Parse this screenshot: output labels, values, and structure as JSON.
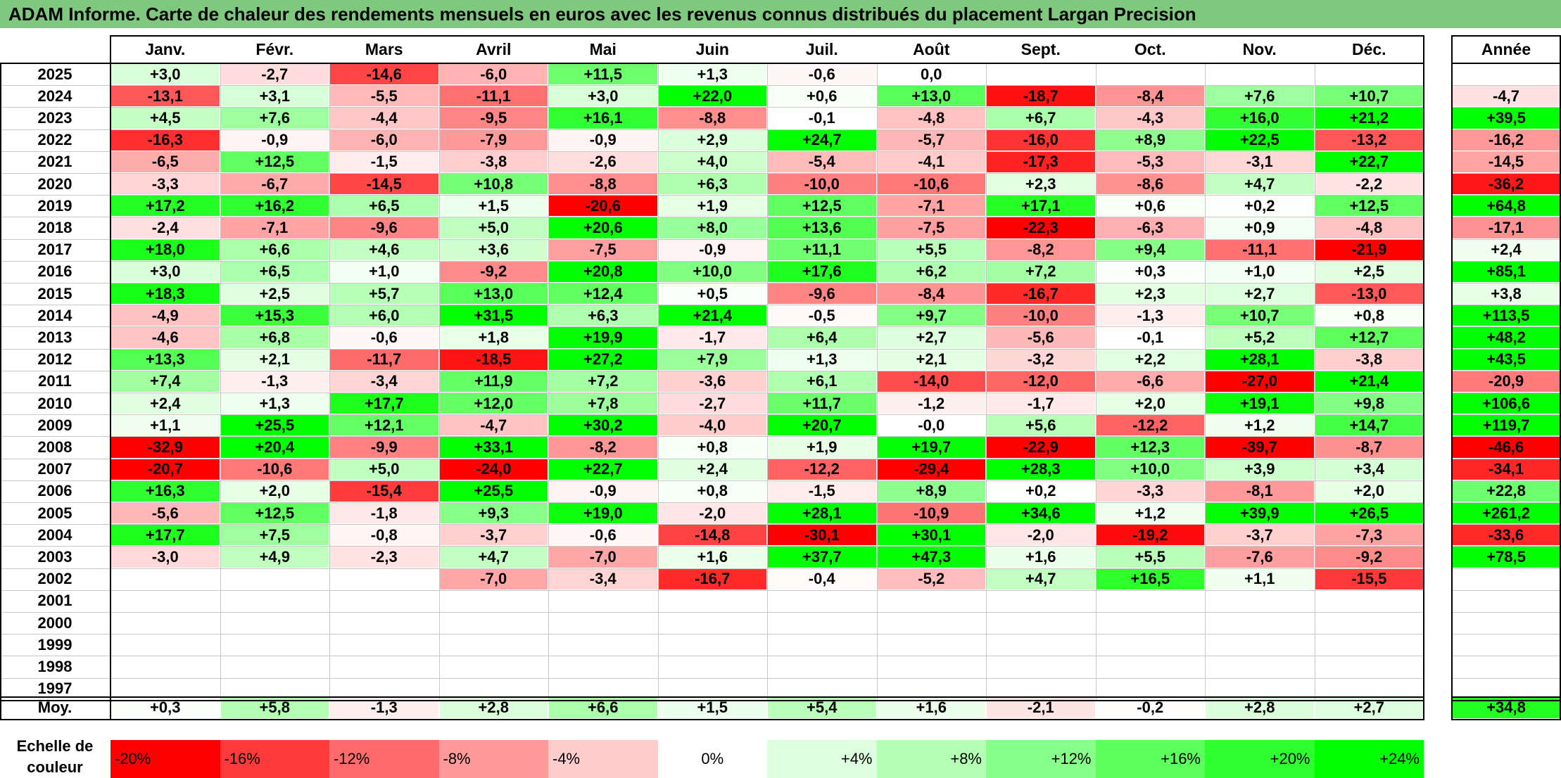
{
  "title": "ADAM Informe. Carte de chaleur des rendements mensuels en euros avec les revenus connus distribués du placement Largan Precision",
  "chart_data": {
    "type": "heatmap",
    "title": "ADAM Informe. Carte de chaleur des rendements mensuels en euros avec les revenus connus distribués du placement Largan Precision",
    "columns": [
      "Janv.",
      "Févr.",
      "Mars",
      "Avril",
      "Mai",
      "Juin",
      "Juil.",
      "Août",
      "Sept.",
      "Oct.",
      "Nov.",
      "Déc."
    ],
    "year_header": "Année",
    "rows": [
      {
        "year": "2025",
        "months": [
          "+3,0",
          "-2,7",
          "-14,6",
          "-6,0",
          "+11,5",
          "+1,3",
          "-0,6",
          "0,0",
          "",
          "",
          "",
          ""
        ],
        "annual": ""
      },
      {
        "year": "2024",
        "months": [
          "-13,1",
          "+3,1",
          "-5,5",
          "-11,1",
          "+3,0",
          "+22,0",
          "+0,6",
          "+13,0",
          "-18,7",
          "-8,4",
          "+7,6",
          "+10,7"
        ],
        "annual": "-4,7"
      },
      {
        "year": "2023",
        "months": [
          "+4,5",
          "+7,6",
          "-4,4",
          "-9,5",
          "+16,1",
          "-8,8",
          "-0,1",
          "-4,8",
          "+6,7",
          "-4,3",
          "+16,0",
          "+21,2"
        ],
        "annual": "+39,5"
      },
      {
        "year": "2022",
        "months": [
          "-16,3",
          "-0,9",
          "-6,0",
          "-7,9",
          "-0,9",
          "+2,9",
          "+24,7",
          "-5,7",
          "-16,0",
          "+8,9",
          "+22,5",
          "-13,2"
        ],
        "annual": "-16,2"
      },
      {
        "year": "2021",
        "months": [
          "-6,5",
          "+12,5",
          "-1,5",
          "-3,8",
          "-2,6",
          "+4,0",
          "-5,4",
          "-4,1",
          "-17,3",
          "-5,3",
          "-3,1",
          "+22,7"
        ],
        "annual": "-14,5"
      },
      {
        "year": "2020",
        "months": [
          "-3,3",
          "-6,7",
          "-14,5",
          "+10,8",
          "-8,8",
          "+6,3",
          "-10,0",
          "-10,6",
          "+2,3",
          "-8,6",
          "+4,7",
          "-2,2"
        ],
        "annual": "-36,2"
      },
      {
        "year": "2019",
        "months": [
          "+17,2",
          "+16,2",
          "+6,5",
          "+1,5",
          "-20,6",
          "+1,9",
          "+12,5",
          "-7,1",
          "+17,1",
          "+0,6",
          "+0,2",
          "+12,5"
        ],
        "annual": "+64,8"
      },
      {
        "year": "2018",
        "months": [
          "-2,4",
          "-7,1",
          "-9,6",
          "+5,0",
          "+20,6",
          "+8,0",
          "+13,6",
          "-7,5",
          "-22,3",
          "-6,3",
          "+0,9",
          "-4,8"
        ],
        "annual": "-17,1"
      },
      {
        "year": "2017",
        "months": [
          "+18,0",
          "+6,6",
          "+4,6",
          "+3,6",
          "-7,5",
          "-0,9",
          "+11,1",
          "+5,5",
          "-8,2",
          "+9,4",
          "-11,1",
          "-21,9"
        ],
        "annual": "+2,4"
      },
      {
        "year": "2016",
        "months": [
          "+3,0",
          "+6,5",
          "+1,0",
          "-9,2",
          "+20,8",
          "+10,0",
          "+17,6",
          "+6,2",
          "+7,2",
          "+0,3",
          "+1,0",
          "+2,5"
        ],
        "annual": "+85,1"
      },
      {
        "year": "2015",
        "months": [
          "+18,3",
          "+2,5",
          "+5,7",
          "+13,0",
          "+12,4",
          "+0,5",
          "-9,6",
          "-8,4",
          "-16,7",
          "+2,3",
          "+2,7",
          "-13,0"
        ],
        "annual": "+3,8"
      },
      {
        "year": "2014",
        "months": [
          "-4,9",
          "+15,3",
          "+6,0",
          "+31,5",
          "+6,3",
          "+21,4",
          "-0,5",
          "+9,7",
          "-10,0",
          "-1,3",
          "+10,7",
          "+0,8"
        ],
        "annual": "+113,5"
      },
      {
        "year": "2013",
        "months": [
          "-4,6",
          "+6,8",
          "-0,6",
          "+1,8",
          "+19,9",
          "-1,7",
          "+6,4",
          "+2,7",
          "-5,6",
          "-0,1",
          "+5,2",
          "+12,7"
        ],
        "annual": "+48,2"
      },
      {
        "year": "2012",
        "months": [
          "+13,3",
          "+2,1",
          "-11,7",
          "-18,5",
          "+27,2",
          "+7,9",
          "+1,3",
          "+2,1",
          "-3,2",
          "+2,2",
          "+28,1",
          "-3,8"
        ],
        "annual": "+43,5"
      },
      {
        "year": "2011",
        "months": [
          "+7,4",
          "-1,3",
          "-3,4",
          "+11,9",
          "+7,2",
          "-3,6",
          "+6,1",
          "-14,0",
          "-12,0",
          "-6,6",
          "-27,0",
          "+21,4"
        ],
        "annual": "-20,9"
      },
      {
        "year": "2010",
        "months": [
          "+2,4",
          "+1,3",
          "+17,7",
          "+12,0",
          "+7,8",
          "-2,7",
          "+11,7",
          "-1,2",
          "-1,7",
          "+2,0",
          "+19,1",
          "+9,8"
        ],
        "annual": "+106,6"
      },
      {
        "year": "2009",
        "months": [
          "+1,1",
          "+25,5",
          "+12,1",
          "-4,7",
          "+30,2",
          "-4,0",
          "+20,7",
          "-0,0",
          "+5,6",
          "-12,2",
          "+1,2",
          "+14,7"
        ],
        "annual": "+119,7"
      },
      {
        "year": "2008",
        "months": [
          "-32,9",
          "+20,4",
          "-9,9",
          "+33,1",
          "-8,2",
          "+0,8",
          "+1,9",
          "+19,7",
          "-22,9",
          "+12,3",
          "-39,7",
          "-8,7"
        ],
        "annual": "-46,6"
      },
      {
        "year": "2007",
        "months": [
          "-20,7",
          "-10,6",
          "+5,0",
          "-24,0",
          "+22,7",
          "+2,4",
          "-12,2",
          "-29,4",
          "+28,3",
          "+10,0",
          "+3,9",
          "+3,4"
        ],
        "annual": "-34,1"
      },
      {
        "year": "2006",
        "months": [
          "+16,3",
          "+2,0",
          "-15,4",
          "+25,5",
          "-0,9",
          "+0,8",
          "-1,5",
          "+8,9",
          "+0,2",
          "-3,3",
          "-8,1",
          "+2,0"
        ],
        "annual": "+22,8"
      },
      {
        "year": "2005",
        "months": [
          "-5,6",
          "+12,5",
          "-1,8",
          "+9,3",
          "+19,0",
          "-2,0",
          "+28,1",
          "-10,9",
          "+34,6",
          "+1,2",
          "+39,9",
          "+26,5"
        ],
        "annual": "+261,2"
      },
      {
        "year": "2004",
        "months": [
          "+17,7",
          "+7,5",
          "-0,8",
          "-3,7",
          "-0,6",
          "-14,8",
          "-30,1",
          "+30,1",
          "-2,0",
          "-19,2",
          "-3,7",
          "-7,3"
        ],
        "annual": "-33,6"
      },
      {
        "year": "2003",
        "months": [
          "-3,0",
          "+4,9",
          "-2,3",
          "+4,7",
          "-7,0",
          "+1,6",
          "+37,7",
          "+47,3",
          "+1,6",
          "+5,5",
          "-7,6",
          "-9,2"
        ],
        "annual": "+78,5"
      },
      {
        "year": "2002",
        "months": [
          "",
          "",
          "",
          "-7,0",
          "-3,4",
          "-16,7",
          "-0,4",
          "-5,2",
          "+4,7",
          "+16,5",
          "+1,1",
          "-15,5"
        ],
        "annual": ""
      },
      {
        "year": "2001",
        "months": [
          "",
          "",
          "",
          "",
          "",
          "",
          "",
          "",
          "",
          "",
          "",
          ""
        ],
        "annual": ""
      },
      {
        "year": "2000",
        "months": [
          "",
          "",
          "",
          "",
          "",
          "",
          "",
          "",
          "",
          "",
          "",
          ""
        ],
        "annual": ""
      },
      {
        "year": "1999",
        "months": [
          "",
          "",
          "",
          "",
          "",
          "",
          "",
          "",
          "",
          "",
          "",
          ""
        ],
        "annual": ""
      },
      {
        "year": "1998",
        "months": [
          "",
          "",
          "",
          "",
          "",
          "",
          "",
          "",
          "",
          "",
          "",
          ""
        ],
        "annual": ""
      },
      {
        "year": "1997",
        "months": [
          "",
          "",
          "",
          "",
          "",
          "",
          "",
          "",
          "",
          "",
          "",
          ""
        ],
        "annual": ""
      }
    ],
    "average": {
      "label": "Moy.",
      "months": [
        "+0,3",
        "+5,8",
        "-1,3",
        "+2,8",
        "+6,6",
        "+1,5",
        "+5,4",
        "+1,6",
        "-2,1",
        "-0,2",
        "+2,8",
        "+2,7"
      ],
      "annual": "+34,8"
    },
    "color_scale": {
      "label": "Echelle de couleur",
      "steps": [
        {
          "label": "-20%",
          "color": "#ff0000"
        },
        {
          "label": "-16%",
          "color": "#ff3a3a"
        },
        {
          "label": "-12%",
          "color": "#ff6a6a"
        },
        {
          "label": "-8%",
          "color": "#ff9a9a"
        },
        {
          "label": "-4%",
          "color": "#ffcccc"
        },
        {
          "label": "0%",
          "color": "#ffffff"
        },
        {
          "label": "+4%",
          "color": "#ddffdd"
        },
        {
          "label": "+8%",
          "color": "#b3ffb3"
        },
        {
          "label": "+12%",
          "color": "#88ff88"
        },
        {
          "label": "+16%",
          "color": "#5cff5c"
        },
        {
          "label": "+20%",
          "color": "#2eff2e"
        },
        {
          "label": "+24%",
          "color": "#00ff00"
        }
      ]
    },
    "colors": {
      "title_bar": "#7fc97f",
      "negative_max": "#ff0000",
      "neutral": "#ffffff",
      "positive_max": "#00ff00"
    }
  }
}
